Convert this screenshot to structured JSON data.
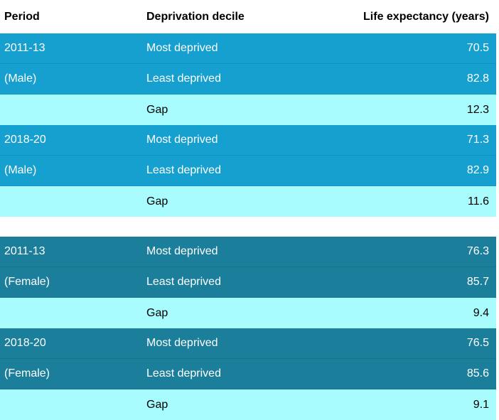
{
  "headers": {
    "period": "Period",
    "decile": "Deprivation decile",
    "life": "Life expectancy (years)"
  },
  "rows": [
    {
      "period": "2011-13",
      "decile": "Most deprived",
      "value": "70.5"
    },
    {
      "period": "(Male)",
      "decile": "Least deprived",
      "value": "82.8"
    },
    {
      "period": "",
      "decile": "Gap",
      "value": "12.3"
    },
    {
      "period": "2018-20",
      "decile": "Most deprived",
      "value": "71.3"
    },
    {
      "period": "(Male)",
      "decile": "Least deprived",
      "value": "82.9"
    },
    {
      "period": "",
      "decile": "Gap",
      "value": "11.6"
    },
    {
      "period": "2011-13",
      "decile": "Most deprived",
      "value": "76.3"
    },
    {
      "period": "(Female)",
      "decile": "Least deprived",
      "value": "85.7"
    },
    {
      "period": "",
      "decile": "Gap",
      "value": "9.4"
    },
    {
      "period": "2018-20",
      "decile": "Most deprived",
      "value": "76.5"
    },
    {
      "period": "(Female)",
      "decile": "Least deprived",
      "value": "85.6"
    },
    {
      "period": "",
      "decile": "Gap",
      "value": "9.1"
    }
  ],
  "colors": {
    "male_row": "#16a0cf",
    "female_row": "#1b7f9c",
    "gap_row": "#a8fcfd"
  }
}
